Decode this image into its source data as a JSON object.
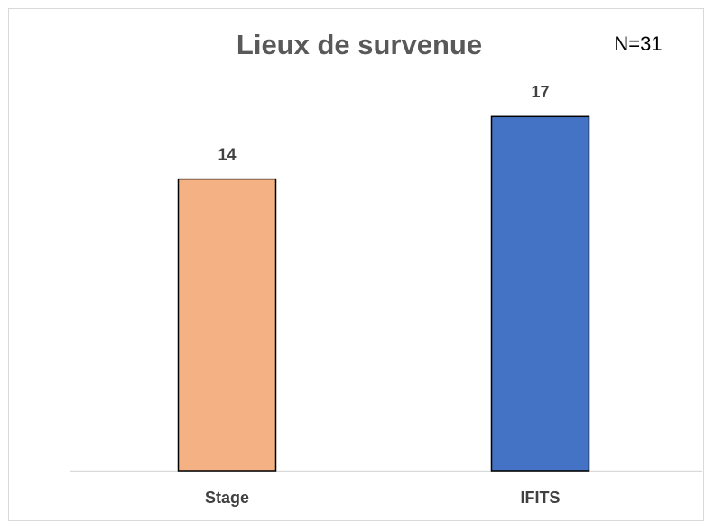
{
  "chart_data": {
    "type": "bar",
    "title": "Lieux de survenue",
    "annotation": "N=31",
    "categories": [
      "Stage",
      "IFITS"
    ],
    "values": [
      14,
      17
    ],
    "colors": [
      "#f4b183",
      "#4472c4"
    ],
    "ylim": [
      0,
      20
    ]
  }
}
